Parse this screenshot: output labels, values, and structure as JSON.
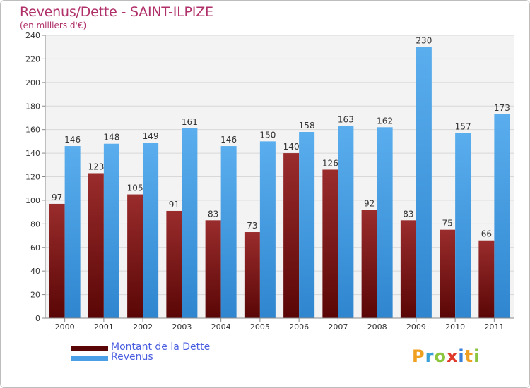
{
  "chart_data": {
    "type": "bar",
    "title": "Revenus/Dette - SAINT-ILPIZE",
    "subtitle": "(en milliers d'€)",
    "categories": [
      "2000",
      "2001",
      "2002",
      "2003",
      "2004",
      "2005",
      "2006",
      "2007",
      "2008",
      "2009",
      "2010",
      "2011"
    ],
    "series": [
      {
        "name": "Montant de la Dette",
        "color": "#7a1515",
        "values": [
          97,
          123,
          105,
          91,
          83,
          73,
          140,
          126,
          92,
          83,
          75,
          66
        ]
      },
      {
        "name": "Revenus",
        "color": "#4a9fe6",
        "values": [
          146,
          148,
          149,
          161,
          146,
          150,
          158,
          163,
          162,
          230,
          157,
          173
        ]
      }
    ],
    "ylim": [
      0,
      240
    ],
    "yticks": [
      0,
      20,
      40,
      60,
      80,
      100,
      120,
      140,
      160,
      180,
      200,
      220,
      240
    ],
    "grid": true,
    "legend_position": "bottom-left"
  },
  "logo_text": "Proxiti"
}
